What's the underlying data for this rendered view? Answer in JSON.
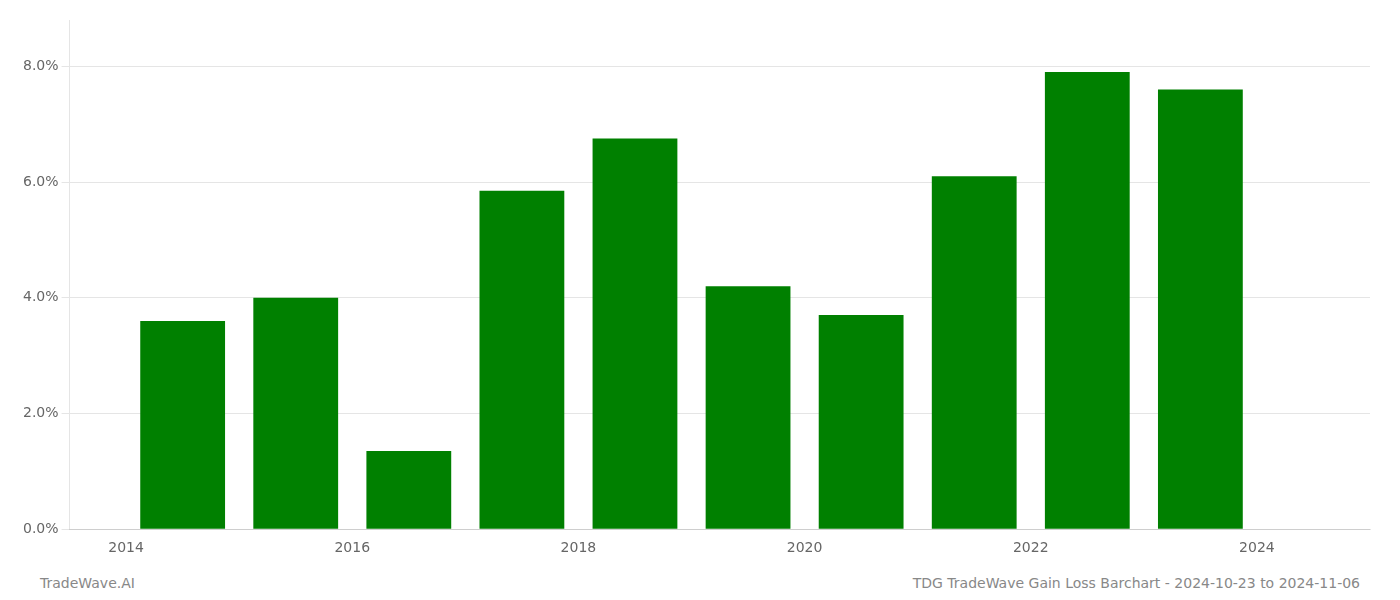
{
  "chart_data": {
    "type": "bar",
    "x": [
      2014,
      2015,
      2016,
      2017,
      2018,
      2019,
      2020,
      2021,
      2022,
      2023
    ],
    "values": [
      0.036,
      0.04,
      0.0135,
      0.0585,
      0.0675,
      0.042,
      0.037,
      0.061,
      0.079,
      0.076
    ],
    "color": "#008000",
    "xlim": [
      2013.0,
      2024.5
    ],
    "xticks": [
      {
        "value": 2013.5,
        "label": "2014"
      },
      {
        "value": 2015.5,
        "label": "2016"
      },
      {
        "value": 2017.5,
        "label": "2018"
      },
      {
        "value": 2019.5,
        "label": "2020"
      },
      {
        "value": 2021.5,
        "label": "2022"
      },
      {
        "value": 2023.5,
        "label": "2024"
      }
    ],
    "ylim": [
      0,
      0.088
    ],
    "yticks": [
      {
        "value": 0.0,
        "label": "0.0%"
      },
      {
        "value": 0.02,
        "label": "2.0%"
      },
      {
        "value": 0.04,
        "label": "4.0%"
      },
      {
        "value": 0.06,
        "label": "6.0%"
      },
      {
        "value": 0.08,
        "label": "8.0%"
      }
    ],
    "grid": "y",
    "annotations": [
      "TradeWave.AI",
      "TDG TradeWave Gain Loss Barchart - 2024-10-23 to 2024-11-06"
    ]
  }
}
